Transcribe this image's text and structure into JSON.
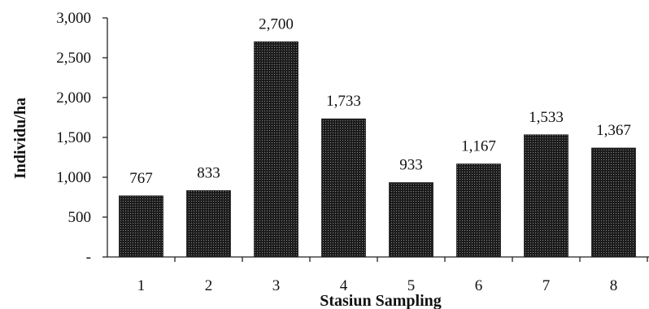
{
  "chart_data": {
    "type": "bar",
    "title": "",
    "xlabel": "Stasiun Sampling",
    "ylabel": "Individu/ha",
    "categories": [
      "1",
      "2",
      "3",
      "4",
      "5",
      "6",
      "7",
      "8"
    ],
    "values": [
      767,
      833,
      2700,
      1733,
      933,
      1167,
      1533,
      1367
    ],
    "data_labels": [
      "767",
      "833",
      "2,700",
      "1,733",
      "933",
      "1,167",
      "1,533",
      "1,367"
    ],
    "ylim": [
      0,
      3000
    ],
    "yticks": [
      0,
      500,
      1000,
      1500,
      2000,
      2500,
      3000
    ],
    "ytick_labels": [
      "-",
      "500",
      "1,000",
      "1,500",
      "2,000",
      "2,500",
      "3,000"
    ],
    "grid": false,
    "legend": "none",
    "bar_fill": "#1e1e1e",
    "bar_pattern": "dotted-dark"
  }
}
